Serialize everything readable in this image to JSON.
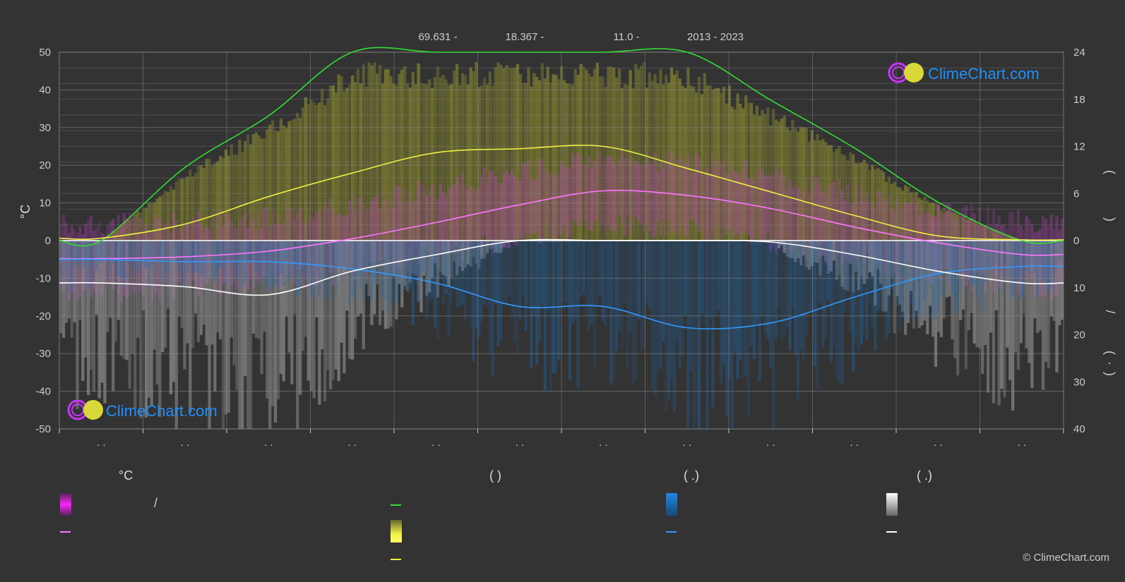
{
  "header": {
    "items": [
      "69.631 -",
      "18.367 -",
      "11.0 -",
      "2013 - 2023"
    ]
  },
  "brand": {
    "logo_text": "ClimeChart.com",
    "copyright": "© ClimeChart.com",
    "colors": {
      "text": "#1e90ff",
      "ring": "#cc33ff",
      "sun": "#e0e040"
    }
  },
  "chart_data": {
    "type": "line",
    "title": "",
    "x": [
      1,
      2,
      3,
      4,
      5,
      6,
      7,
      8,
      9,
      10,
      11,
      12
    ],
    "x_tick_labels": [
      ". .",
      ". .",
      ". .",
      ". .",
      ". .",
      ". .",
      ". .",
      ". .",
      ". .",
      ". .",
      ". .",
      ". ."
    ],
    "y_left": {
      "label": "°C",
      "range": [
        -50,
        50
      ],
      "ticks": [
        50,
        40,
        30,
        20,
        10,
        0,
        -10,
        -20,
        -30,
        -40,
        -50
      ]
    },
    "y_right_top": {
      "range": [
        0,
        24
      ],
      "ticks": [
        24,
        18,
        12,
        6,
        0
      ],
      "label_fragments": [
        "(",
        ")"
      ]
    },
    "y_right_bottom": {
      "range": [
        0,
        40
      ],
      "ticks": [
        10,
        20,
        30,
        40
      ],
      "label_fragments": [
        "/",
        "(",
        "·",
        ")"
      ]
    },
    "grid": true,
    "series": [
      {
        "key": "daylight",
        "color": "#33dd33",
        "axis": "hours",
        "values": [
          0,
          9.3,
          15.9,
          24,
          24,
          24,
          24,
          24,
          17.9,
          11.8,
          4.9,
          0
        ]
      },
      {
        "key": "sunshine",
        "color": "#eeee44",
        "axis": "hours",
        "values": [
          0.3,
          2.1,
          5.6,
          8.6,
          11.2,
          11.7,
          12.0,
          9.2,
          6.2,
          3.2,
          0.6,
          0.1
        ]
      },
      {
        "key": "avg_temp",
        "color": "#ff77ff",
        "axis": "temp_c",
        "values": [
          -4.8,
          -4.3,
          -2.8,
          0.5,
          4.8,
          9.5,
          13.2,
          12.0,
          8.5,
          3.6,
          -0.6,
          -3.7
        ]
      },
      {
        "key": "rain",
        "color": "#3399ff",
        "axis": "mm",
        "values": [
          4.0,
          4.5,
          4.5,
          6.0,
          9.0,
          14.0,
          14.0,
          18.5,
          17.5,
          12.0,
          7.0,
          5.5
        ]
      },
      {
        "key": "snow",
        "color": "#ffffff",
        "axis": "mm",
        "values": [
          9.0,
          9.8,
          11.5,
          6.5,
          3.0,
          0,
          0,
          0,
          0.3,
          3.0,
          6.5,
          9.0
        ]
      }
    ]
  },
  "legend": {
    "columns": [
      {
        "title": "°C",
        "rows": [
          "/",
          ""
        ]
      },
      {
        "title": "(            )",
        "rows": [
          "",
          "",
          ""
        ]
      },
      {
        "title": "(    .)",
        "rows": [
          "",
          ""
        ]
      },
      {
        "title": "(    .)",
        "rows": [
          "",
          ""
        ]
      }
    ],
    "colors": {
      "temp_range": "#ff33ff",
      "temp_line": "#ff77ff",
      "daylight_line": "#33dd33",
      "sunshine_range": "#eeee44",
      "sunshine_line": "#eeee44",
      "rain_range": "#1e88e5",
      "rain_line": "#3399ff",
      "snow_range": "#eeeeee",
      "snow_line": "#ffffff"
    }
  }
}
